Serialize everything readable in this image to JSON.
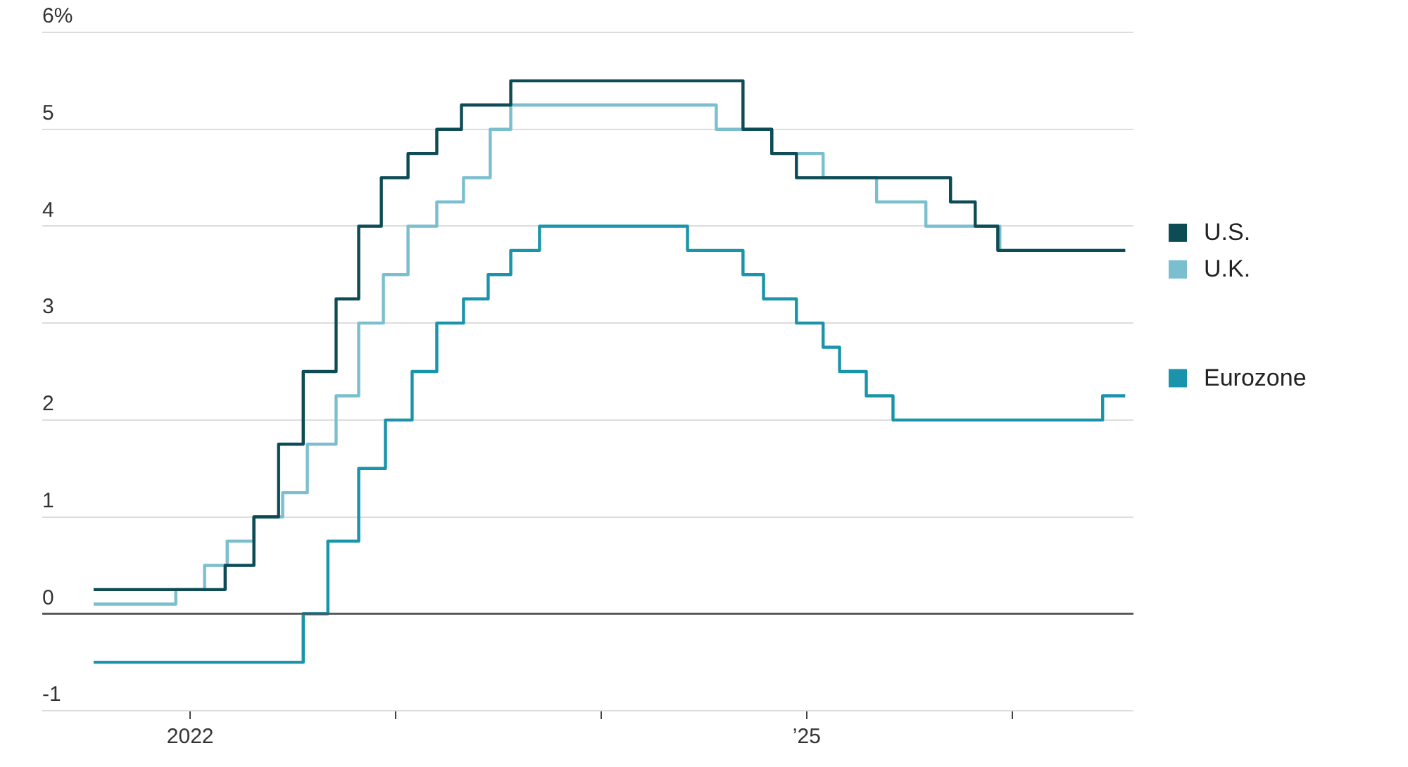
{
  "chart_data": {
    "type": "step",
    "x": [
      2021.53,
      2022.17,
      2022.31,
      2022.43,
      2022.55,
      2022.71,
      2022.82,
      2022.93,
      2023.06,
      2023.2,
      2023.32,
      2023.56,
      2024.69,
      2024.83,
      2024.95,
      2025.7,
      2025.82,
      2025.93,
      2026.55
    ],
    "series": [
      {
        "name": "U.S.",
        "color": "#0d4b55",
        "values": [
          0.25,
          0.5,
          1.0,
          1.75,
          2.5,
          3.25,
          4.0,
          4.5,
          4.75,
          5.0,
          5.25,
          5.5,
          5.0,
          4.75,
          4.5,
          4.25,
          4.0,
          3.75,
          3.75
        ]
      },
      {
        "name": "U.K.",
        "color": "#7bbfcf",
        "x": [
          2021.53,
          2021.93,
          2022.07,
          2022.18,
          2022.31,
          2022.45,
          2022.57,
          2022.71,
          2022.82,
          2022.94,
          2023.06,
          2023.2,
          2023.33,
          2023.46,
          2023.56,
          2024.56,
          2024.83,
          2025.08,
          2025.34,
          2025.58,
          2025.94,
          2026.55
        ],
        "values": [
          0.1,
          0.25,
          0.5,
          0.75,
          1.0,
          1.25,
          1.75,
          2.25,
          3.0,
          3.5,
          4.0,
          4.25,
          4.5,
          5.0,
          5.25,
          5.0,
          4.75,
          4.5,
          4.25,
          4.0,
          3.75,
          3.75
        ]
      },
      {
        "name": "Eurozone",
        "color": "#1a94ab",
        "x": [
          2021.53,
          2022.55,
          2022.67,
          2022.82,
          2022.95,
          2023.08,
          2023.2,
          2023.33,
          2023.45,
          2023.56,
          2023.7,
          2024.42,
          2024.69,
          2024.79,
          2024.95,
          2025.08,
          2025.16,
          2025.29,
          2025.42,
          2026.44,
          2026.55
        ],
        "values": [
          -0.5,
          0.0,
          0.75,
          1.5,
          2.0,
          2.5,
          3.0,
          3.25,
          3.5,
          3.75,
          4.0,
          3.75,
          3.5,
          3.25,
          3.0,
          2.75,
          2.5,
          2.25,
          2.0,
          2.25,
          2.25
        ]
      }
    ],
    "xlim": [
      2021.28,
      2026.59
    ],
    "xticks": [
      {
        "value": 2022,
        "label": "2022"
      },
      {
        "value": 2023,
        "label": null
      },
      {
        "value": 2024,
        "label": null
      },
      {
        "value": 2025,
        "label": "’25"
      },
      {
        "value": 2026,
        "label": null
      }
    ],
    "ylim": [
      -1,
      6
    ],
    "yticks": [
      -1,
      0,
      1,
      2,
      3,
      4,
      5,
      {
        "value": 6,
        "label": "6%"
      }
    ],
    "ref_lines": [
      {
        "axis": "y",
        "value": 0,
        "color": "#555555"
      }
    ],
    "grid": "y",
    "legend": "right"
  }
}
